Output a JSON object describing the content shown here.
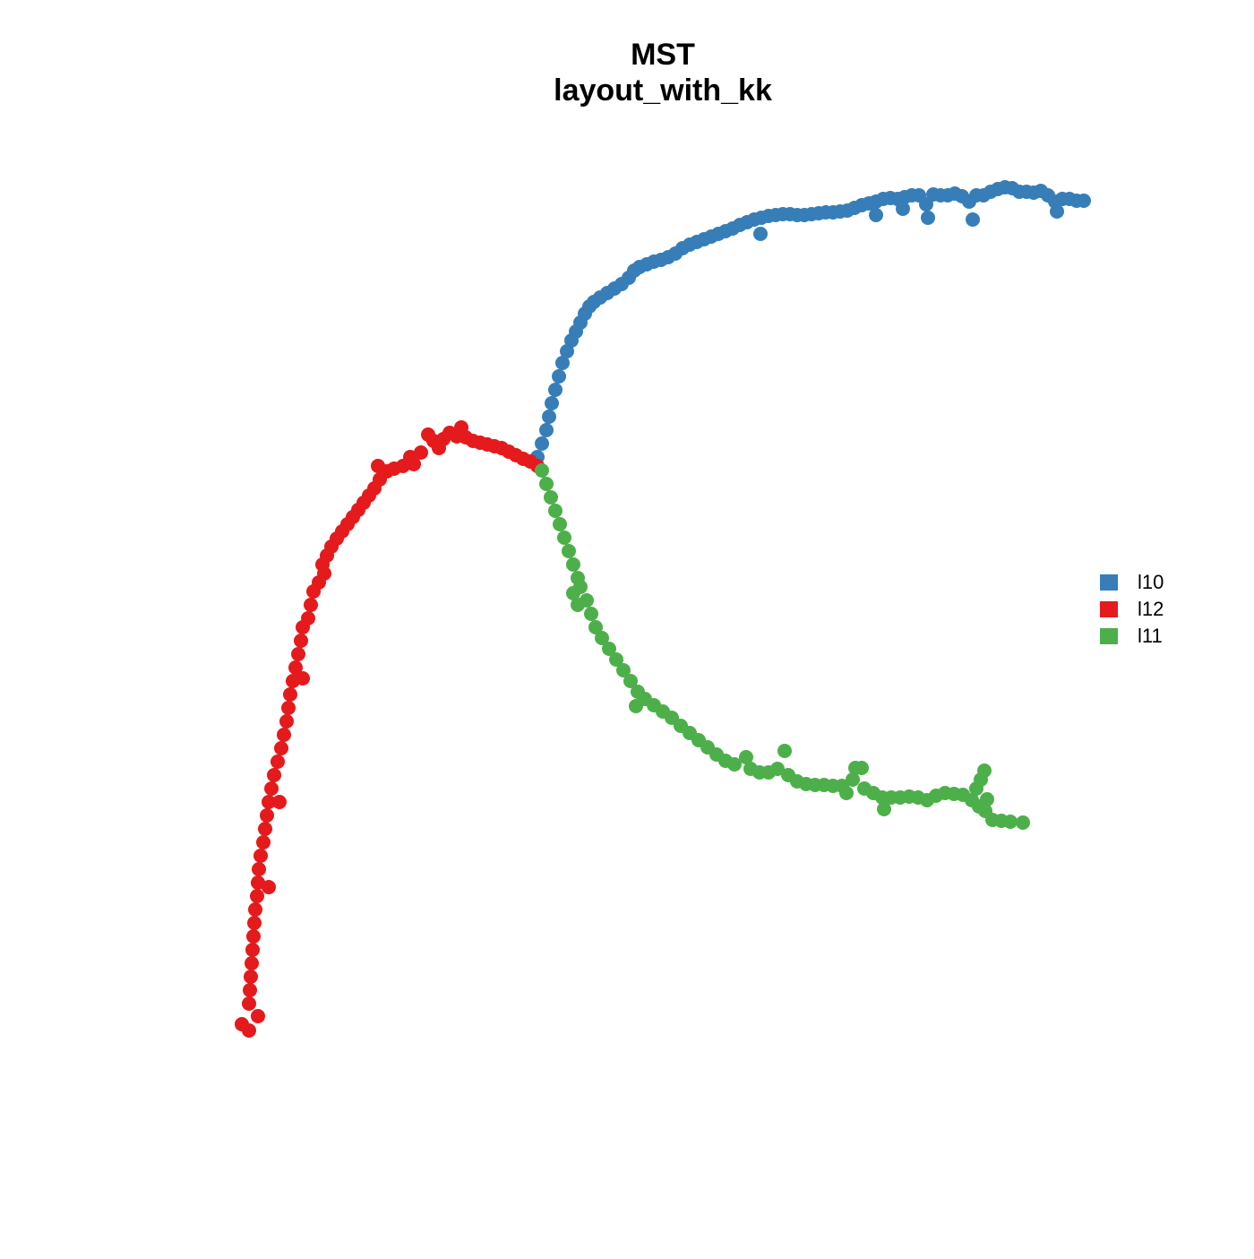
{
  "chart_data": {
    "type": "scatter",
    "title": "MST",
    "subtitle": "layout_with_kk",
    "xlim": [
      0,
      100
    ],
    "ylim": [
      0,
      100
    ],
    "legend": "right",
    "series": [
      {
        "name": "l10",
        "color": "#377EB8",
        "x": [
          37,
          37.5,
          38,
          38.3,
          38.6,
          39,
          39.4,
          39.8,
          40.3,
          40.8,
          41.3,
          41.8,
          42.3,
          42.8,
          43.3,
          44,
          44.8,
          45.6,
          46.4,
          47.2,
          47.8,
          48.4,
          49.2,
          50,
          50.8,
          51.6,
          52.4,
          53.2,
          54,
          54.8,
          55.6,
          56.4,
          57.2,
          58,
          58.8,
          59.6,
          60.4,
          61.2,
          62,
          61.9,
          62.8,
          63.6,
          64.4,
          65.2,
          66,
          66.8,
          67.6,
          68.4,
          69.2,
          70,
          70.8,
          71.6,
          72.4,
          73.2,
          74,
          74.8,
          74.8,
          75.6,
          76.4,
          77.2,
          77.8,
          78,
          78.8,
          79.6,
          80.4,
          80.6,
          81.2,
          82,
          82.8,
          83.6,
          84.4,
          85.2,
          85.6,
          86,
          86.8,
          87.6,
          88.4,
          89.2,
          90,
          90.8,
          91.6,
          92.4,
          93.2,
          94,
          94.8,
          95,
          95.6,
          96.4,
          97.2,
          98
        ],
        "values": [
          67,
          68.5,
          70,
          71.5,
          73,
          74.5,
          76,
          77.5,
          78.8,
          80,
          81,
          82,
          83,
          83.8,
          84.3,
          84.8,
          85.3,
          85.8,
          86.3,
          87,
          87.8,
          88.2,
          88.5,
          88.8,
          89,
          89.3,
          89.7,
          90.3,
          90.7,
          91,
          91.3,
          91.6,
          91.9,
          92.2,
          92.5,
          92.9,
          93.2,
          93.5,
          93.7,
          91.9,
          93.9,
          94,
          94.1,
          94.1,
          94,
          94,
          94.1,
          94.2,
          94.3,
          94.3,
          94.4,
          94.5,
          94.8,
          95.1,
          95.3,
          94,
          95.5,
          95.8,
          95.9,
          95.8,
          94.7,
          96,
          96.2,
          96.2,
          95.2,
          93.7,
          96.3,
          96.2,
          96.2,
          96.4,
          96.1,
          95.5,
          93.5,
          96.2,
          96.2,
          96.6,
          96.9,
          97.1,
          97,
          96.6,
          96.6,
          96.5,
          96.7,
          96.2,
          95.5,
          94.4,
          95.8,
          95.8,
          95.6,
          95.6
        ]
      },
      {
        "name": "l12",
        "color": "#E41A1C",
        "x": [
          37,
          36.2,
          35.4,
          34.6,
          33.8,
          33,
          32.2,
          31.4,
          30.6,
          29.8,
          29,
          28.5,
          28,
          27.2,
          26.5,
          26,
          25.4,
          24.8,
          24,
          23.2,
          22.8,
          22,
          21,
          20.2,
          19.2,
          19.4,
          18.8,
          18.2,
          17.6,
          17,
          16.4,
          15.8,
          15.2,
          14.6,
          14,
          13.5,
          13.2,
          13,
          12.6,
          12,
          11.7,
          11.4,
          10.8,
          10.6,
          10.3,
          10,
          10.8,
          9.7,
          9.4,
          9.2,
          9,
          8.7,
          8.4,
          8,
          7.6,
          7.3,
          8.2,
          7,
          6.8,
          6.6,
          6.4,
          6.1,
          5.9,
          5.8,
          7,
          5.7,
          5.5,
          5.4,
          5.3,
          5.2,
          5.1,
          5,
          4.9,
          4.8,
          5.8,
          4,
          4.8
        ],
        "values": [
          66,
          66.5,
          66.8,
          67.2,
          67.6,
          68,
          68.2,
          68.4,
          68.6,
          68.8,
          69.2,
          70.3,
          69.3,
          69.7,
          69,
          68,
          68.8,
          69.5,
          67.5,
          66.2,
          67,
          66,
          65.7,
          65.4,
          66,
          64.5,
          63.5,
          62.7,
          61.9,
          61.1,
          60.3,
          59.5,
          58.7,
          57.9,
          57,
          56,
          54,
          55,
          53,
          52,
          50.5,
          49,
          48,
          46.5,
          45,
          43.5,
          42.3,
          42,
          40.5,
          39,
          37.5,
          36,
          34.5,
          33,
          31.5,
          30,
          28.5,
          28.5,
          27,
          25.5,
          24,
          22.5,
          21,
          19.5,
          19,
          18,
          16.5,
          15,
          13.5,
          12,
          10.5,
          9,
          7.5,
          6,
          4.6,
          3.7,
          3
        ]
      },
      {
        "name": "l11",
        "color": "#4DAF4A",
        "x": [
          37.5,
          38,
          38.5,
          39,
          39.5,
          40,
          40.5,
          41,
          41.5,
          41.8,
          41,
          41.5,
          42.5,
          43,
          43.5,
          44.2,
          45,
          45.8,
          46.6,
          47.4,
          48.2,
          48,
          49,
          50,
          51,
          52,
          53,
          54,
          55,
          56,
          57,
          58,
          59,
          60.3,
          60.8,
          61.8,
          62.8,
          63.8,
          64.6,
          65,
          66,
          67,
          68,
          69,
          70,
          71,
          71.5,
          72.2,
          72.5,
          73.2,
          73.5,
          74.5,
          75.5,
          75.7,
          76.5,
          77.5,
          78.5,
          79.5,
          80.5,
          81.5,
          82.5,
          83.5,
          84.5,
          85.5,
          86,
          86.5,
          86.9,
          86.3,
          87.2,
          87,
          87.8,
          88.8,
          89.8,
          91.2
        ],
        "values": [
          65.5,
          64,
          62.5,
          61,
          59.5,
          58,
          56.5,
          55,
          53.5,
          52.5,
          51.8,
          50.5,
          51,
          49.5,
          48,
          46.8,
          45.6,
          44.4,
          43.2,
          42,
          40.8,
          39.2,
          40,
          39.3,
          38.6,
          37.9,
          37,
          36.2,
          35.4,
          34.6,
          33.8,
          33.1,
          32.7,
          33.5,
          32.2,
          31.8,
          31.8,
          32.2,
          34.2,
          31.5,
          30.8,
          30.5,
          30.4,
          30.4,
          30.3,
          30.3,
          29.5,
          31,
          32.3,
          32.3,
          30,
          29.5,
          29,
          27.7,
          29,
          29,
          29.1,
          29,
          28.7,
          29.2,
          29.5,
          29.4,
          29.3,
          28.7,
          30,
          31,
          32,
          28,
          28.8,
          27.5,
          26.5,
          26.4,
          26.3,
          26.2
        ]
      }
    ]
  }
}
